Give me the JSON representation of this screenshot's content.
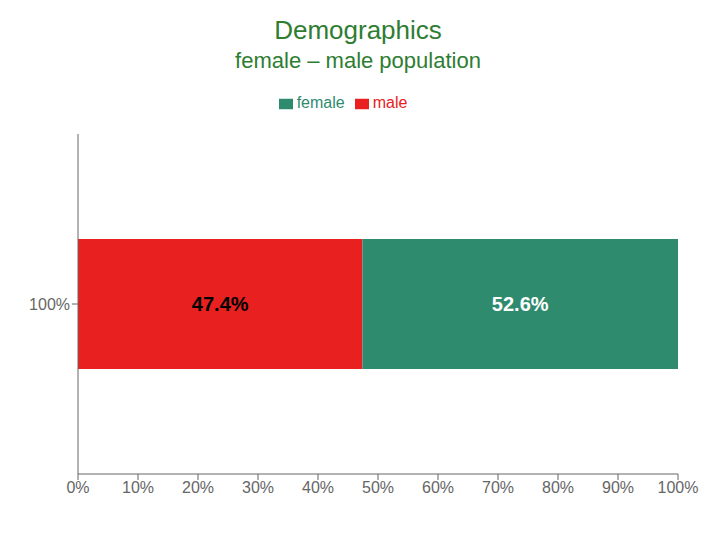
{
  "chart_data": {
    "type": "bar",
    "orientation": "horizontal",
    "stacked": true,
    "title": "Demographics",
    "subtitle": "female – male population",
    "categories": [
      "100%"
    ],
    "series": [
      {
        "name": "male",
        "color": "#e82020",
        "values": [
          47.4
        ],
        "value_labels": [
          "47.4%"
        ]
      },
      {
        "name": "female",
        "color": "#2e8b6e",
        "values": [
          52.6
        ],
        "value_labels": [
          "52.6%"
        ]
      }
    ],
    "xlim": [
      0,
      100
    ],
    "xticks": [
      {
        "value": 0,
        "label": "0%"
      },
      {
        "value": 10,
        "label": "10%"
      },
      {
        "value": 20,
        "label": "20%"
      },
      {
        "value": 30,
        "label": "30%"
      },
      {
        "value": 40,
        "label": "40%"
      },
      {
        "value": 50,
        "label": "50%"
      },
      {
        "value": 60,
        "label": "60%"
      },
      {
        "value": 70,
        "label": "70%"
      },
      {
        "value": 80,
        "label": "80%"
      },
      {
        "value": 90,
        "label": "90%"
      },
      {
        "value": 100,
        "label": "100%"
      }
    ],
    "data_labels": true,
    "legend": "top",
    "grid": false
  }
}
